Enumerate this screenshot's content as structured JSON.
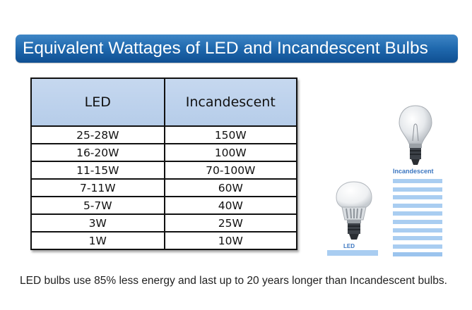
{
  "title": "Equivalent Wattages of LED and Incandescent Bulbs",
  "table": {
    "headers": [
      "LED",
      "Incandescent"
    ],
    "rows": [
      [
        "25-28W",
        "150W"
      ],
      [
        "16-20W",
        "100W"
      ],
      [
        "11-15W",
        "70-100W"
      ],
      [
        "7-11W",
        "60W"
      ],
      [
        "5-7W",
        "40W"
      ],
      [
        "3W",
        "25W"
      ],
      [
        "1W",
        "10W"
      ]
    ]
  },
  "caption": "LED bulbs use 85% less energy and last up to 20 years longer than Incandescent bulbs.",
  "illustration": {
    "incandescent_label": "Incandescent",
    "led_label": "LED",
    "incandescent_bar_count": 10,
    "led_bar_count": 1
  },
  "colors": {
    "banner": "#1f68ad",
    "header_fill": "#bcd1ec",
    "bar_fill": "#a9cdf1",
    "label_text": "#3b76c0"
  }
}
